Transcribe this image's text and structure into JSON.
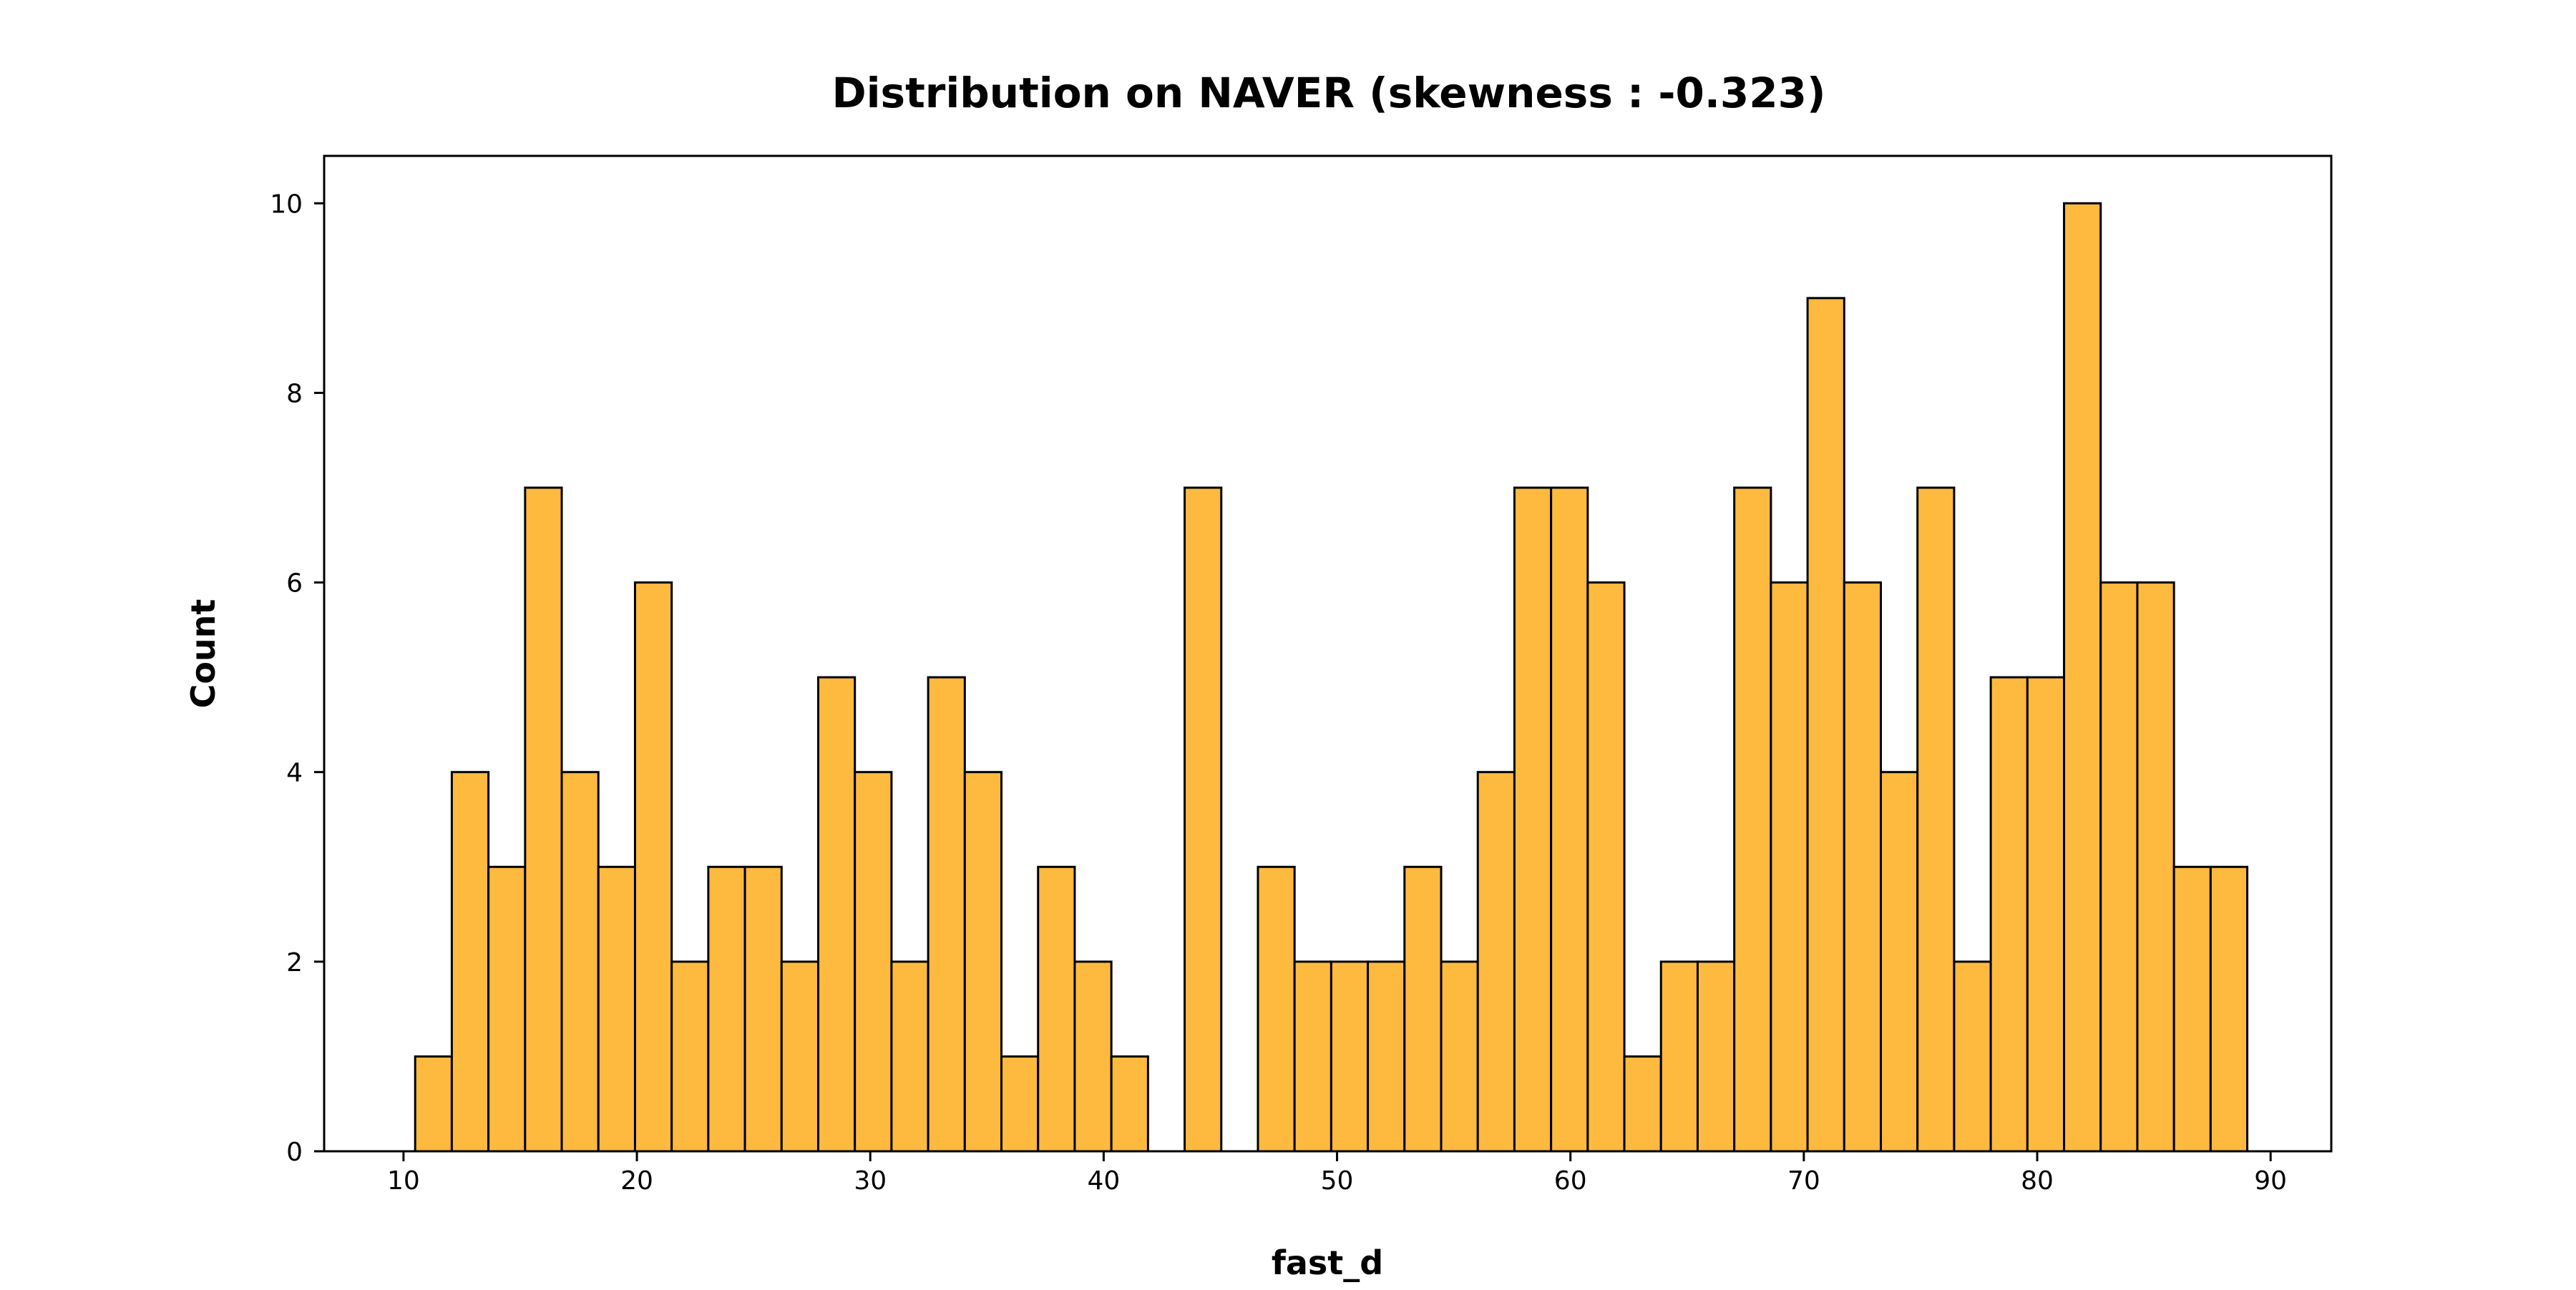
{
  "chart_data": {
    "type": "bar",
    "title": "Distribution on NAVER (skewness : -0.323)",
    "xlabel": "fast_d",
    "ylabel": "Count",
    "xlim": [
      6.6,
      92.6
    ],
    "ylim": [
      0,
      10.5
    ],
    "xticks": [
      10,
      20,
      30,
      40,
      50,
      60,
      70,
      80,
      90
    ],
    "yticks": [
      0,
      2,
      4,
      6,
      8,
      10
    ],
    "bin_start": 10.5,
    "bin_width": 1.57,
    "bin_counts": [
      1,
      4,
      3,
      7,
      4,
      3,
      6,
      2,
      3,
      3,
      2,
      5,
      4,
      2,
      5,
      4,
      1,
      3,
      2,
      1,
      0,
      7,
      0,
      3,
      2,
      2,
      2,
      3,
      2,
      4,
      7,
      7,
      6,
      1,
      2,
      2,
      7,
      6,
      9,
      6,
      4,
      7,
      2,
      5,
      5,
      10,
      6,
      6,
      3,
      3
    ],
    "bar_color": "#FDBA3F",
    "edge_color": "#000000",
    "grid": false,
    "legend": "none"
  }
}
